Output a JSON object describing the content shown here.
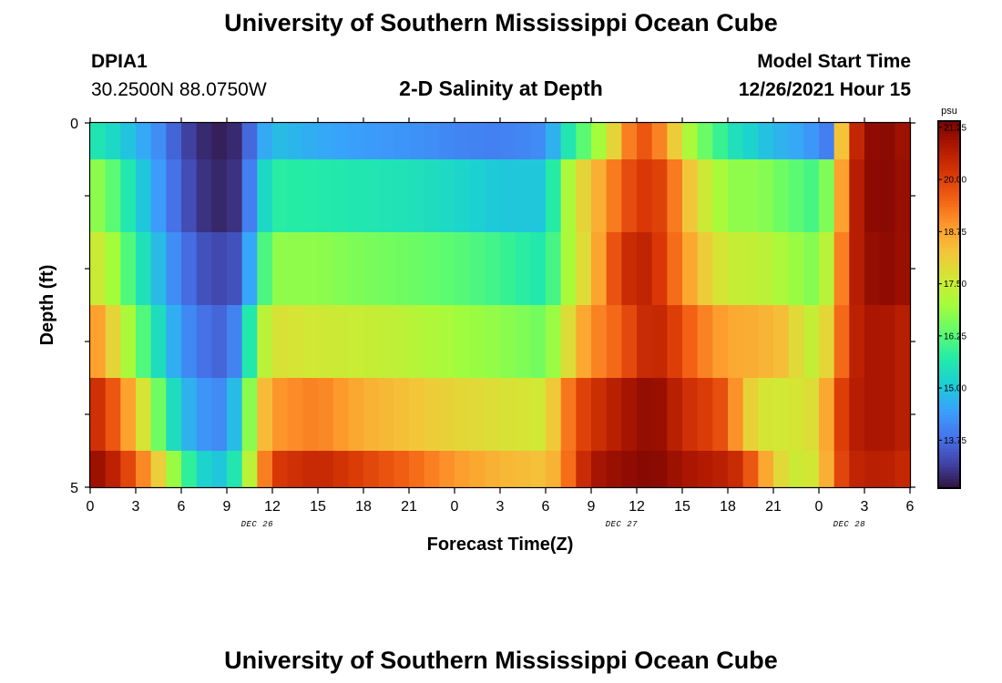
{
  "header": {
    "title": "University of Southern Mississippi Ocean Cube",
    "station_id": "DPIA1",
    "location": "30.2500N  88.0750W",
    "plot_title": "2-D Salinity at Depth",
    "model_start_label": "Model Start Time",
    "model_start_value": "12/26/2021 Hour 15"
  },
  "footer": {
    "title": "University of Southern Mississippi Ocean Cube"
  },
  "chart_data": {
    "type": "heatmap",
    "title": "2-D Salinity at Depth",
    "xlabel": "Forecast Time(Z)",
    "ylabel": "Depth (ft)",
    "x_tick_labels": [
      "0",
      "3",
      "6",
      "9",
      "12",
      "15",
      "18",
      "21",
      "0",
      "3",
      "6",
      "9",
      "12",
      "15",
      "18",
      "21",
      "0",
      "3",
      "6"
    ],
    "x_hours": [
      0,
      3,
      6,
      9,
      12,
      15,
      18,
      21,
      24,
      27,
      30,
      33,
      36,
      39,
      42,
      45,
      48,
      51,
      54
    ],
    "date_labels": [
      {
        "text": "DEC 26",
        "hour": 11
      },
      {
        "text": "DEC 27",
        "hour": 35
      },
      {
        "text": "DEC 28",
        "hour": 50
      }
    ],
    "y_tick_labels": [
      "0",
      "5"
    ],
    "ylim": [
      0,
      5
    ],
    "xlim": [
      0,
      54
    ],
    "colorbar": {
      "unit": "psu",
      "ticks": [
        "21.25",
        "20.00",
        "18.75",
        "17.50",
        "16.25",
        "15.00",
        "13.75"
      ],
      "tick_values": [
        21.25,
        20.0,
        18.75,
        17.5,
        16.25,
        15.0,
        13.75
      ],
      "vmin": 12.6,
      "vmax": 21.4,
      "colors": [
        "#30123b",
        "#4145ab",
        "#4675ed",
        "#39a2fc",
        "#1bcfd4",
        "#24eca6",
        "#61fc6c",
        "#a4fc3b",
        "#d1e834",
        "#f3c63a",
        "#fe9b2d",
        "#f36315",
        "#d93806",
        "#b11901",
        "#7a0402"
      ]
    },
    "layers": [
      {
        "depth_top": 0,
        "depth_bottom": 0.5,
        "keys": [
          [
            0,
            15.7
          ],
          [
            1.5,
            15.3
          ],
          [
            3,
            14.8
          ],
          [
            5,
            14.0
          ],
          [
            6,
            13.3
          ],
          [
            7.5,
            12.9
          ],
          [
            9,
            12.7
          ],
          [
            10,
            13.1
          ],
          [
            11,
            14.3
          ],
          [
            12,
            14.9
          ],
          [
            15,
            14.6
          ],
          [
            18,
            14.4
          ],
          [
            21,
            14.3
          ],
          [
            24,
            14.1
          ],
          [
            27,
            14.0
          ],
          [
            30,
            14.2
          ],
          [
            31,
            15.2
          ],
          [
            32,
            16.0
          ],
          [
            33,
            16.6
          ],
          [
            34,
            17.4
          ],
          [
            35,
            18.6
          ],
          [
            36,
            19.8
          ],
          [
            37,
            19.6
          ],
          [
            38,
            18.7
          ],
          [
            39,
            17.6
          ],
          [
            40,
            16.6
          ],
          [
            41,
            16.3
          ],
          [
            42,
            15.6
          ],
          [
            45,
            14.8
          ],
          [
            47,
            14.5
          ],
          [
            48.5,
            14.0
          ],
          [
            49,
            16.0
          ],
          [
            49.5,
            18.3
          ],
          [
            50,
            20.0
          ],
          [
            51,
            21.0
          ],
          [
            52,
            21.3
          ],
          [
            54,
            20.9
          ]
        ]
      },
      {
        "depth_top": 0.5,
        "depth_bottom": 1.5,
        "keys": [
          [
            0,
            17.0
          ],
          [
            1.5,
            16.3
          ],
          [
            3,
            15.3
          ],
          [
            5,
            14.1
          ],
          [
            6,
            13.5
          ],
          [
            7.5,
            13.0
          ],
          [
            9,
            12.8
          ],
          [
            10,
            13.2
          ],
          [
            11,
            14.8
          ],
          [
            12,
            15.8
          ],
          [
            15,
            15.7
          ],
          [
            18,
            15.6
          ],
          [
            21,
            15.5
          ],
          [
            24,
            15.3
          ],
          [
            27,
            15.0
          ],
          [
            30,
            15.0
          ],
          [
            31,
            16.5
          ],
          [
            32,
            17.7
          ],
          [
            33,
            18.3
          ],
          [
            34,
            18.9
          ],
          [
            35,
            19.6
          ],
          [
            36,
            20.1
          ],
          [
            37,
            20.2
          ],
          [
            38,
            19.8
          ],
          [
            39,
            18.7
          ],
          [
            40,
            17.8
          ],
          [
            41,
            17.3
          ],
          [
            42,
            16.8
          ],
          [
            44,
            16.8
          ],
          [
            46,
            16.4
          ],
          [
            48,
            16.0
          ],
          [
            49,
            17.3
          ],
          [
            50,
            20.3
          ],
          [
            51,
            21.1
          ],
          [
            52,
            21.3
          ],
          [
            54,
            21.0
          ]
        ]
      },
      {
        "depth_top": 1.5,
        "depth_bottom": 2.5,
        "keys": [
          [
            0,
            17.8
          ],
          [
            1.5,
            17.0
          ],
          [
            3,
            15.8
          ],
          [
            5,
            14.5
          ],
          [
            6,
            13.9
          ],
          [
            7.5,
            13.4
          ],
          [
            9,
            13.2
          ],
          [
            10,
            13.6
          ],
          [
            11,
            15.5
          ],
          [
            12,
            16.8
          ],
          [
            15,
            16.8
          ],
          [
            18,
            16.6
          ],
          [
            21,
            16.5
          ],
          [
            24,
            16.3
          ],
          [
            27,
            16.0
          ],
          [
            30,
            15.6
          ],
          [
            31,
            16.6
          ],
          [
            32,
            17.5
          ],
          [
            33,
            18.2
          ],
          [
            34,
            19.3
          ],
          [
            35,
            20.2
          ],
          [
            36,
            20.6
          ],
          [
            37,
            20.5
          ],
          [
            38,
            19.8
          ],
          [
            39,
            19.0
          ],
          [
            40,
            18.4
          ],
          [
            41,
            17.9
          ],
          [
            42,
            17.5
          ],
          [
            44,
            17.4
          ],
          [
            46,
            17.0
          ],
          [
            48,
            16.6
          ],
          [
            49,
            18.0
          ],
          [
            50,
            20.4
          ],
          [
            51,
            21.0
          ],
          [
            52,
            21.2
          ],
          [
            54,
            21.0
          ]
        ]
      },
      {
        "depth_top": 2.5,
        "depth_bottom": 3.5,
        "keys": [
          [
            0,
            19.2
          ],
          [
            1.5,
            18.0
          ],
          [
            3,
            16.6
          ],
          [
            5,
            15.0
          ],
          [
            6,
            14.3
          ],
          [
            7.5,
            13.8
          ],
          [
            9,
            13.6
          ],
          [
            10,
            14.5
          ],
          [
            11,
            16.8
          ],
          [
            12,
            17.8
          ],
          [
            15,
            17.6
          ],
          [
            18,
            17.5
          ],
          [
            21,
            17.3
          ],
          [
            24,
            17.0
          ],
          [
            27,
            16.8
          ],
          [
            30,
            16.5
          ],
          [
            31,
            17.3
          ],
          [
            32,
            18.4
          ],
          [
            33,
            19.0
          ],
          [
            34,
            19.3
          ],
          [
            35,
            19.6
          ],
          [
            36,
            20.2
          ],
          [
            37,
            20.6
          ],
          [
            38,
            20.3
          ],
          [
            39,
            19.8
          ],
          [
            40,
            19.3
          ],
          [
            41,
            19.0
          ],
          [
            42,
            18.7
          ],
          [
            44,
            18.6
          ],
          [
            46,
            18.3
          ],
          [
            47,
            17.5
          ],
          [
            48,
            17.4
          ],
          [
            49,
            18.5
          ],
          [
            50,
            20.4
          ],
          [
            51,
            20.8
          ],
          [
            52,
            20.9
          ],
          [
            54,
            20.6
          ]
        ]
      },
      {
        "depth_top": 3.5,
        "depth_bottom": 4.5,
        "keys": [
          [
            0,
            20.6
          ],
          [
            1.5,
            19.7
          ],
          [
            3,
            18.3
          ],
          [
            5,
            15.9
          ],
          [
            6,
            14.9
          ],
          [
            7.5,
            14.3
          ],
          [
            9,
            14.1
          ],
          [
            10,
            15.6
          ],
          [
            11,
            17.9
          ],
          [
            12,
            18.9
          ],
          [
            15,
            19.2
          ],
          [
            18,
            18.6
          ],
          [
            21,
            18.3
          ],
          [
            24,
            18.0
          ],
          [
            27,
            17.8
          ],
          [
            30,
            17.6
          ],
          [
            31,
            18.8
          ],
          [
            32,
            19.8
          ],
          [
            33,
            20.2
          ],
          [
            34,
            20.5
          ],
          [
            35,
            20.8
          ],
          [
            36,
            21.0
          ],
          [
            37,
            21.2
          ],
          [
            38,
            20.9
          ],
          [
            39,
            20.4
          ],
          [
            40,
            20.2
          ],
          [
            41,
            20.0
          ],
          [
            42,
            19.6
          ],
          [
            43,
            18.4
          ],
          [
            44,
            17.7
          ],
          [
            46,
            17.6
          ],
          [
            48,
            17.9
          ],
          [
            49,
            19.5
          ],
          [
            50,
            20.6
          ],
          [
            51,
            20.8
          ],
          [
            52,
            20.9
          ],
          [
            54,
            20.6
          ]
        ]
      },
      {
        "depth_top": 4.5,
        "depth_bottom": 5,
        "keys": [
          [
            0,
            21.2
          ],
          [
            1.5,
            20.6
          ],
          [
            3,
            19.6
          ],
          [
            5,
            17.6
          ],
          [
            6,
            16.2
          ],
          [
            7.5,
            15.2
          ],
          [
            9,
            14.9
          ],
          [
            10,
            16.3
          ],
          [
            11,
            18.3
          ],
          [
            12,
            20.1
          ],
          [
            15,
            20.5
          ],
          [
            18,
            20.0
          ],
          [
            21,
            19.5
          ],
          [
            24,
            18.9
          ],
          [
            27,
            18.5
          ],
          [
            30,
            18.3
          ],
          [
            31,
            18.8
          ],
          [
            32,
            20.0
          ],
          [
            33,
            20.8
          ],
          [
            34,
            21.0
          ],
          [
            35,
            21.1
          ],
          [
            36,
            21.2
          ],
          [
            37,
            21.3
          ],
          [
            38,
            21.1
          ],
          [
            39,
            20.9
          ],
          [
            40,
            20.8
          ],
          [
            41,
            20.7
          ],
          [
            42,
            20.6
          ],
          [
            43,
            20.2
          ],
          [
            44,
            19.2
          ],
          [
            45,
            18.2
          ],
          [
            46,
            17.6
          ],
          [
            47,
            17.5
          ],
          [
            48,
            17.8
          ],
          [
            49,
            19.4
          ],
          [
            50,
            20.5
          ],
          [
            51,
            20.6
          ],
          [
            52,
            20.7
          ],
          [
            54,
            20.4
          ]
        ]
      }
    ]
  }
}
